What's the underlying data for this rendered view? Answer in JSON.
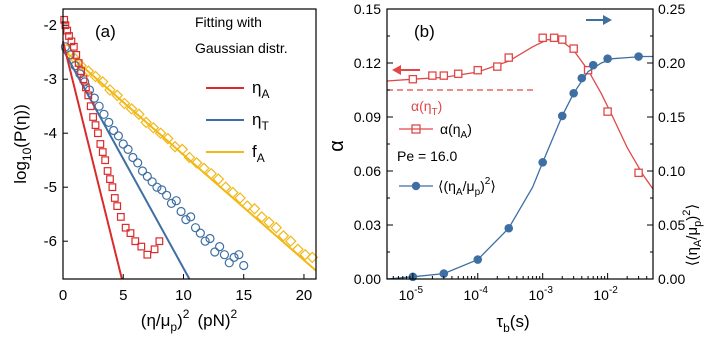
{
  "chart_data": [
    {
      "type": "scatter",
      "panel_label": "(a)",
      "xlabel_main": "(η/μ",
      "xlabel_sub": "p",
      "xlabel_sup": "2",
      "xlabel_unit": "(pN)",
      "xlabel_unit_sup": "2",
      "ylabel": "log",
      "ylabel_sub": "10",
      "ylabel_rest": "(P(η))",
      "xlim": [
        0,
        21
      ],
      "ylim": [
        -6.7,
        -1.7
      ],
      "xticks": [
        0,
        5,
        10,
        15,
        20
      ],
      "yticks": [
        -2,
        -3,
        -4,
        -5,
        -6
      ],
      "legend": {
        "title_line1": "Fitting with",
        "title_line2": "Gaussian distr.",
        "placement": "top-right"
      },
      "series": [
        {
          "name": "η",
          "name_sub": "A",
          "color": "#d92b2b",
          "marker": "square",
          "fit": {
            "x0": 0,
            "y0": -2.3,
            "slope": -0.9
          },
          "points": [
            [
              0.1,
              -1.9
            ],
            [
              0.2,
              -2.0
            ],
            [
              0.35,
              -2.1
            ],
            [
              0.5,
              -2.2
            ],
            [
              0.7,
              -2.3
            ],
            [
              0.9,
              -2.4
            ],
            [
              1.1,
              -2.55
            ],
            [
              1.3,
              -2.7
            ],
            [
              1.5,
              -2.85
            ],
            [
              1.7,
              -3.0
            ],
            [
              1.9,
              -3.15
            ],
            [
              2.1,
              -3.3
            ],
            [
              2.3,
              -3.5
            ],
            [
              2.5,
              -3.7
            ],
            [
              2.7,
              -3.85
            ],
            [
              2.9,
              -4.0
            ],
            [
              3.1,
              -4.2
            ],
            [
              3.3,
              -4.35
            ],
            [
              3.5,
              -4.5
            ],
            [
              3.7,
              -4.7
            ],
            [
              3.9,
              -4.85
            ],
            [
              4.1,
              -5.0
            ],
            [
              4.3,
              -5.2
            ],
            [
              4.5,
              -5.35
            ],
            [
              4.8,
              -5.55
            ],
            [
              5.2,
              -5.75
            ],
            [
              5.6,
              -5.85
            ],
            [
              6.0,
              -6.0
            ],
            [
              6.5,
              -6.1
            ],
            [
              7.0,
              -6.25
            ],
            [
              7.6,
              -6.15
            ],
            [
              8.0,
              -6.0
            ]
          ]
        },
        {
          "name": "η",
          "name_sub": "T",
          "color": "#3e6fa3",
          "marker": "circle",
          "fit": {
            "x0": 0,
            "y0": -2.45,
            "slope": -0.405
          },
          "points": [
            [
              0.2,
              -2.4
            ],
            [
              0.6,
              -2.55
            ],
            [
              1.0,
              -2.75
            ],
            [
              1.4,
              -2.9
            ],
            [
              1.8,
              -3.05
            ],
            [
              2.2,
              -3.2
            ],
            [
              2.6,
              -3.35
            ],
            [
              3.0,
              -3.5
            ],
            [
              3.4,
              -3.65
            ],
            [
              3.8,
              -3.8
            ],
            [
              4.2,
              -3.95
            ],
            [
              4.6,
              -4.05
            ],
            [
              5.0,
              -4.2
            ],
            [
              5.4,
              -4.3
            ],
            [
              5.8,
              -4.45
            ],
            [
              6.2,
              -4.55
            ],
            [
              6.6,
              -4.7
            ],
            [
              7.0,
              -4.8
            ],
            [
              7.4,
              -4.9
            ],
            [
              7.8,
              -5.0
            ],
            [
              8.2,
              -5.05
            ],
            [
              8.6,
              -5.15
            ],
            [
              9.0,
              -5.3
            ],
            [
              9.4,
              -5.25
            ],
            [
              9.8,
              -5.45
            ],
            [
              10.2,
              -5.6
            ],
            [
              10.6,
              -5.55
            ],
            [
              11.0,
              -5.75
            ],
            [
              11.4,
              -5.85
            ],
            [
              11.8,
              -6.0
            ],
            [
              12.2,
              -5.95
            ],
            [
              12.6,
              -6.2
            ],
            [
              13.0,
              -6.1
            ],
            [
              13.4,
              -6.25
            ],
            [
              13.8,
              -6.4
            ],
            [
              14.2,
              -6.3
            ],
            [
              14.6,
              -6.25
            ],
            [
              15.0,
              -6.45
            ]
          ]
        },
        {
          "name": "f",
          "name_sub": "A",
          "color": "#f2b817",
          "marker": "diamond",
          "fit": {
            "x0": 0,
            "y0": -2.45,
            "slope": -0.195
          },
          "points": [
            [
              0.3,
              -2.45
            ],
            [
              0.9,
              -2.6
            ],
            [
              1.5,
              -2.75
            ],
            [
              2.1,
              -2.85
            ],
            [
              2.7,
              -2.95
            ],
            [
              3.3,
              -3.05
            ],
            [
              3.9,
              -3.2
            ],
            [
              4.5,
              -3.3
            ],
            [
              5.1,
              -3.45
            ],
            [
              5.7,
              -3.55
            ],
            [
              6.3,
              -3.65
            ],
            [
              6.9,
              -3.8
            ],
            [
              7.5,
              -3.9
            ],
            [
              8.1,
              -4.0
            ],
            [
              8.7,
              -4.1
            ],
            [
              9.3,
              -4.25
            ],
            [
              9.9,
              -4.3
            ],
            [
              10.5,
              -4.45
            ],
            [
              11.1,
              -4.55
            ],
            [
              11.7,
              -4.65
            ],
            [
              12.3,
              -4.75
            ],
            [
              12.9,
              -4.85
            ],
            [
              13.5,
              -5.0
            ],
            [
              14.1,
              -5.1
            ],
            [
              14.7,
              -5.2
            ],
            [
              15.3,
              -5.35
            ],
            [
              15.9,
              -5.4
            ],
            [
              16.5,
              -5.55
            ],
            [
              17.1,
              -5.65
            ],
            [
              17.7,
              -5.75
            ],
            [
              18.3,
              -5.9
            ],
            [
              18.9,
              -6.0
            ],
            [
              19.5,
              -6.15
            ],
            [
              20.1,
              -6.25
            ],
            [
              20.7,
              -6.3
            ]
          ]
        }
      ]
    },
    {
      "type": "line",
      "panel_label": "(b)",
      "xlabel": "τ",
      "xlabel_sub": "b",
      "xlabel_rest": "(s)",
      "x_scale": "log",
      "xlim": [
        4e-06,
        0.05
      ],
      "xticks": [
        {
          "value": 1e-05,
          "base": "10",
          "exp": "-5"
        },
        {
          "value": 0.0001,
          "base": "10",
          "exp": "-4"
        },
        {
          "value": 0.001,
          "base": "10",
          "exp": "-3"
        },
        {
          "value": 0.01,
          "base": "10",
          "exp": "-2"
        }
      ],
      "ylabel_left": "α",
      "ylim_left": [
        0,
        0.15
      ],
      "yticks_left": [
        "0.00",
        "0.03",
        "0.06",
        "0.09",
        "0.12",
        "0.15"
      ],
      "ylabel_right_parts": [
        "⟨(η",
        "A",
        "/μ",
        "p",
        ")",
        "2",
        "⟩"
      ],
      "ylim_right": [
        0,
        0.25
      ],
      "yticks_right": [
        "0.00",
        "0.05",
        "0.10",
        "0.15",
        "0.20",
        "0.25"
      ],
      "reference_line": {
        "label": "α(η",
        "label_sub": "T",
        "label_end": ")",
        "y": 0.105,
        "color": "#e04848"
      },
      "annotation": "Pe = 16.0",
      "series": [
        {
          "name": "α(η",
          "name_sub": "A",
          "name_end": ")",
          "axis": "left",
          "color": "#e04848",
          "marker": "square",
          "x": [
            1e-05,
            2e-05,
            3e-05,
            5e-05,
            0.0001,
            0.0002,
            0.0003,
            0.001,
            0.0015,
            0.002,
            0.003,
            0.005,
            0.01,
            0.03
          ],
          "y": [
            0.111,
            0.113,
            0.113,
            0.114,
            0.116,
            0.118,
            0.123,
            0.134,
            0.134,
            0.133,
            0.128,
            0.116,
            0.093,
            0.059
          ],
          "curve_x": [
            4e-06,
            1e-05,
            3e-05,
            0.0001,
            0.0003,
            0.0007,
            0.0012,
            0.002,
            0.003,
            0.005,
            0.008,
            0.012,
            0.02,
            0.035,
            0.05
          ],
          "curve_y": [
            0.11,
            0.111,
            0.112,
            0.115,
            0.121,
            0.129,
            0.133,
            0.132,
            0.127,
            0.116,
            0.103,
            0.09,
            0.073,
            0.058,
            0.05
          ]
        },
        {
          "name": "⟨(η",
          "name_parts": [
            "A",
            "/μ",
            "p",
            ")",
            "2",
            "⟩"
          ],
          "axis": "right",
          "color": "#3e6fa3",
          "marker": "circle",
          "x": [
            1e-05,
            3e-05,
            0.0001,
            0.0003,
            0.001,
            0.002,
            0.003,
            0.004,
            0.006,
            0.01,
            0.03
          ],
          "y": [
            0.002,
            0.005,
            0.018,
            0.047,
            0.108,
            0.151,
            0.172,
            0.186,
            0.198,
            0.204,
            0.206
          ],
          "curve_x": [
            4e-06,
            1e-05,
            3e-05,
            0.0001,
            0.0003,
            0.0007,
            0.001,
            0.002,
            0.003,
            0.005,
            0.008,
            0.012,
            0.02,
            0.035,
            0.05
          ],
          "curve_y": [
            0.0,
            0.002,
            0.005,
            0.018,
            0.047,
            0.085,
            0.108,
            0.151,
            0.172,
            0.192,
            0.2,
            0.204,
            0.205,
            0.206,
            0.206
          ]
        }
      ]
    }
  ]
}
